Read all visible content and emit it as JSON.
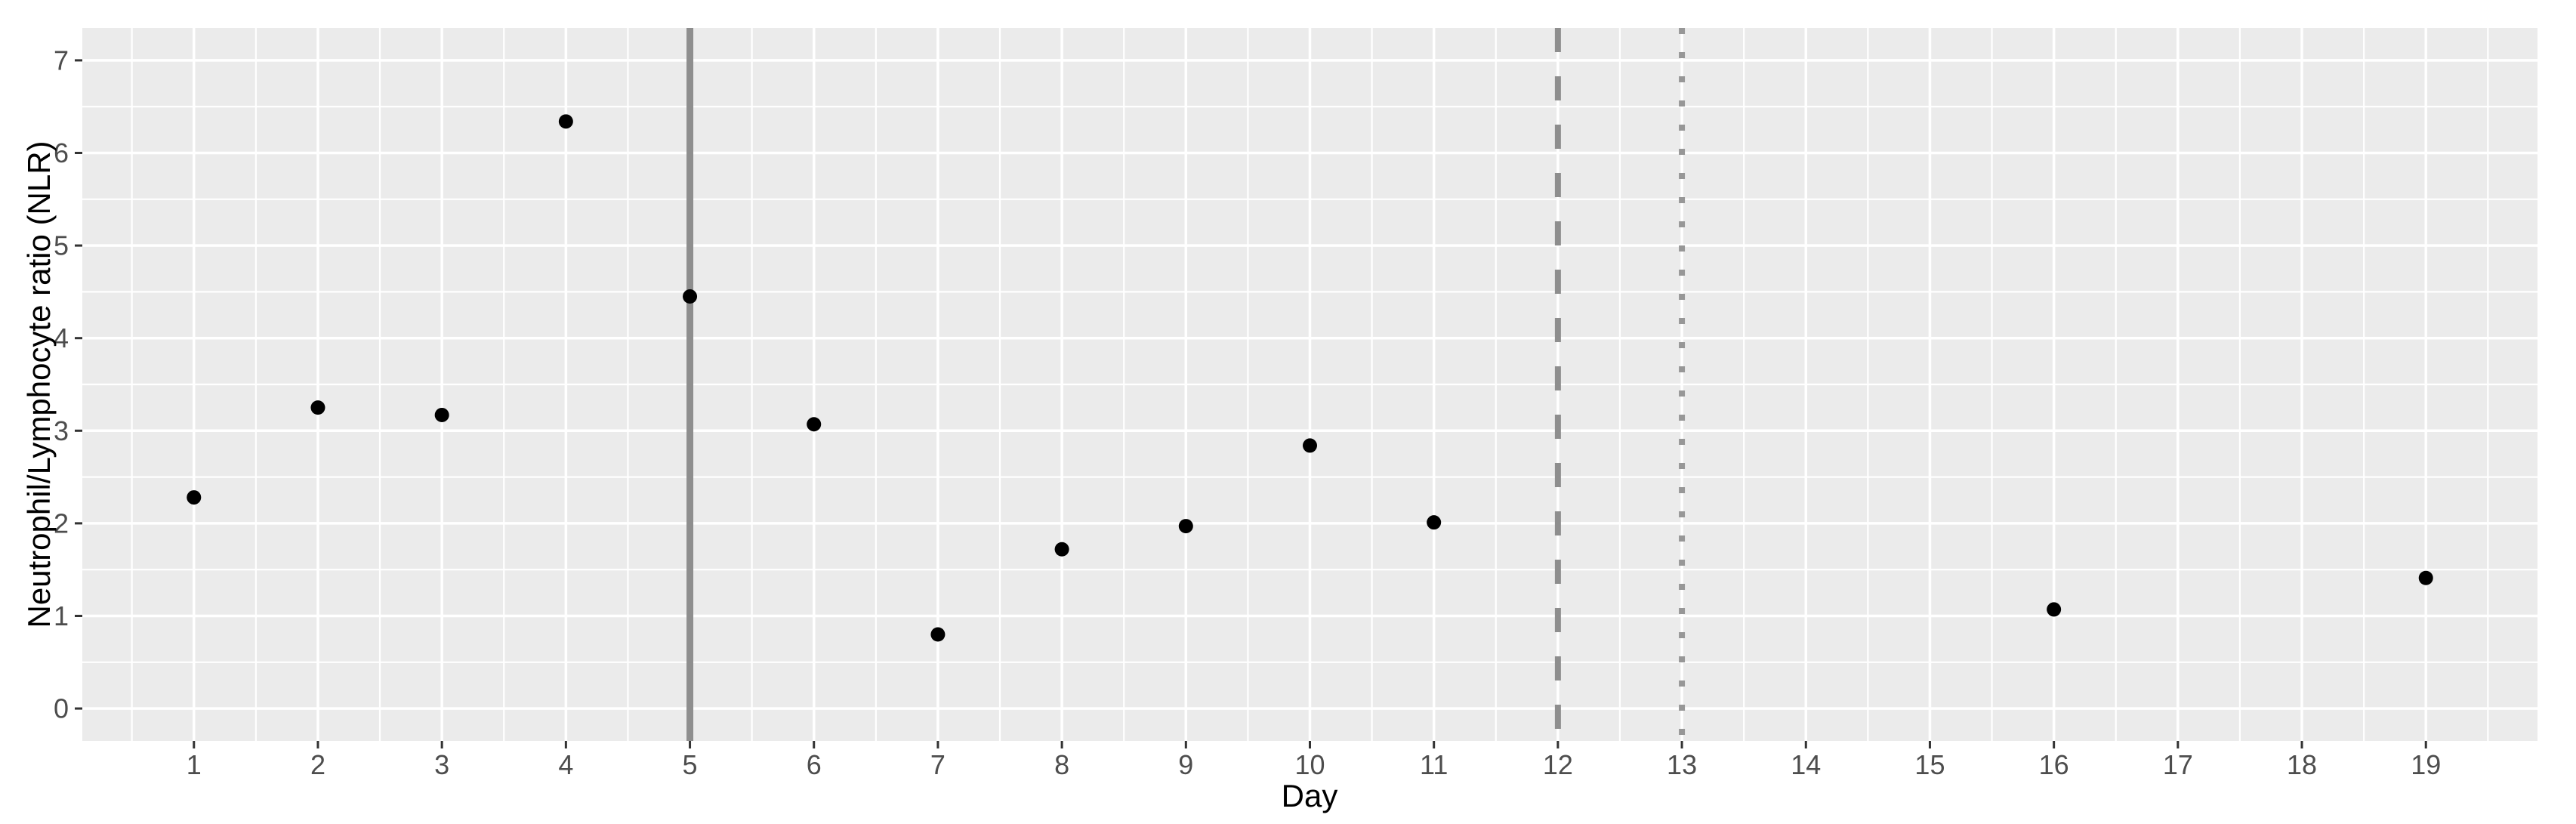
{
  "figure": {
    "background": "#ffffff",
    "panel_background": "#ebebeb",
    "grid_major_color": "#ffffff",
    "grid_minor_color": "#ffffff",
    "tick_mark_color": "#333333",
    "tick_label_color": "#4d4d4d",
    "axis_title_color": "#000000",
    "point_color": "#000000",
    "vline_solid_color": "#8e8e8e",
    "vline_dashed_color": "#8e8e8e",
    "vline_dotted_color": "#979797"
  },
  "chart_data": {
    "type": "scatter",
    "title": "",
    "xlabel": "Day",
    "ylabel": "Neutrophil/Lymphocyte ratio (NLR)",
    "x": [
      1,
      2,
      3,
      4,
      5,
      6,
      7,
      8,
      9,
      10,
      11,
      16,
      19
    ],
    "y": [
      2.28,
      3.25,
      3.17,
      6.34,
      4.45,
      3.07,
      0.8,
      1.72,
      1.97,
      2.84,
      2.01,
      1.07,
      1.41
    ],
    "series_name": "NLR",
    "x_ticks": [
      1,
      2,
      3,
      4,
      5,
      6,
      7,
      8,
      9,
      10,
      11,
      12,
      13,
      14,
      15,
      16,
      17,
      18,
      19
    ],
    "y_ticks": [
      0,
      1,
      2,
      3,
      4,
      5,
      6,
      7
    ],
    "xlim": [
      0.1,
      19.9
    ],
    "ylim": [
      -0.35,
      7.35
    ],
    "grid": "major and minor, white on gray panel",
    "legend": "none",
    "vlines": [
      {
        "x": 5,
        "linetype": "solid"
      },
      {
        "x": 12,
        "linetype": "dashed"
      },
      {
        "x": 13,
        "linetype": "dotted"
      }
    ]
  }
}
